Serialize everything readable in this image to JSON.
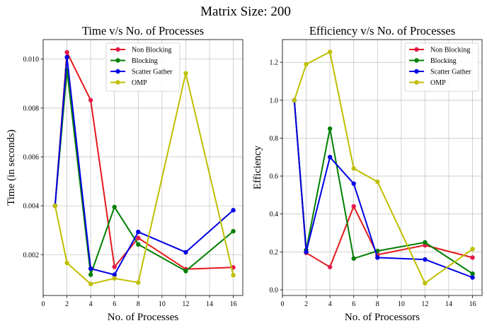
{
  "suptitle": "Matrix Size: 200",
  "chart_data": [
    {
      "type": "line",
      "title": "Time v/s No. of Processes",
      "xlabel": "No. of Processes",
      "ylabel": "Time (in seconds)",
      "xlim": [
        0,
        16.8
      ],
      "ylim": [
        0.00033,
        0.0108
      ],
      "xticks": [
        0,
        2,
        4,
        6,
        8,
        10,
        12,
        14,
        16
      ],
      "yticks": [
        0.002,
        0.004,
        0.006,
        0.008,
        0.01
      ],
      "ytick_labels": [
        "0.002",
        "0.004",
        "0.006",
        "0.008",
        "0.010"
      ],
      "grid": true,
      "legend_position": "top-center",
      "series": [
        {
          "name": "Non Blocking",
          "color": "#e41a1c",
          "marker": "#e6194b",
          "x": [
            1,
            2,
            4,
            6,
            8,
            12,
            16
          ],
          "y": [
            0.004,
            0.01028,
            0.00832,
            0.0015,
            0.00268,
            0.00141,
            0.00148
          ]
        },
        {
          "name": "Blocking",
          "color": "#008000",
          "marker": "#008000",
          "x": [
            1,
            2,
            4,
            6,
            8,
            12,
            16
          ],
          "y": [
            0.004,
            0.00955,
            0.00118,
            0.00395,
            0.00242,
            0.00133,
            0.00296
          ]
        },
        {
          "name": "Scatter Gather",
          "color": "#0000e6",
          "marker": "#0000e6",
          "x": [
            1,
            2,
            4,
            6,
            8,
            12,
            16
          ],
          "y": [
            0.004,
            0.01008,
            0.00143,
            0.00118,
            0.00293,
            0.0021,
            0.00382
          ]
        },
        {
          "name": "OMP",
          "color": "#bfbf00",
          "marker": "#bfbf00",
          "x": [
            1,
            2,
            4,
            6,
            8,
            12,
            16
          ],
          "y": [
            0.004,
            0.00166,
            0.0008,
            0.00103,
            0.00086,
            0.00942,
            0.00116
          ]
        }
      ]
    },
    {
      "type": "line",
      "title": "Efficiency v/s No. of Processes",
      "xlabel": "No. of Processors",
      "ylabel": "Efficiency",
      "xlim": [
        0,
        16.8
      ],
      "ylim": [
        -0.03,
        1.32
      ],
      "xticks": [
        0,
        2,
        4,
        6,
        8,
        10,
        12,
        14,
        16
      ],
      "yticks": [
        0.0,
        0.2,
        0.4,
        0.6,
        0.8,
        1.0,
        1.2
      ],
      "ytick_labels": [
        "0.0",
        "0.2",
        "0.4",
        "0.6",
        "0.8",
        "1.0",
        "1.2"
      ],
      "grid": true,
      "legend_position": "top-right",
      "series": [
        {
          "name": "Non Blocking",
          "color": "#e41a1c",
          "marker": "#e6194b",
          "x": [
            1,
            2,
            4,
            6,
            8,
            12,
            16
          ],
          "y": [
            1.0,
            0.195,
            0.12,
            0.44,
            0.185,
            0.235,
            0.17
          ]
        },
        {
          "name": "Blocking",
          "color": "#008000",
          "marker": "#008000",
          "x": [
            1,
            2,
            4,
            6,
            8,
            12,
            16
          ],
          "y": [
            1.0,
            0.21,
            0.85,
            0.165,
            0.205,
            0.25,
            0.085
          ]
        },
        {
          "name": "Scatter Gather",
          "color": "#0000e6",
          "marker": "#0000e6",
          "x": [
            1,
            2,
            4,
            6,
            8,
            12,
            16
          ],
          "y": [
            1.0,
            0.2,
            0.7,
            0.56,
            0.17,
            0.16,
            0.065
          ]
        },
        {
          "name": "OMP",
          "color": "#bfbf00",
          "marker": "#bfbf00",
          "x": [
            1,
            2,
            4,
            6,
            8,
            12,
            16
          ],
          "y": [
            1.0,
            1.19,
            1.255,
            0.64,
            0.57,
            0.035,
            0.215
          ]
        }
      ]
    }
  ]
}
